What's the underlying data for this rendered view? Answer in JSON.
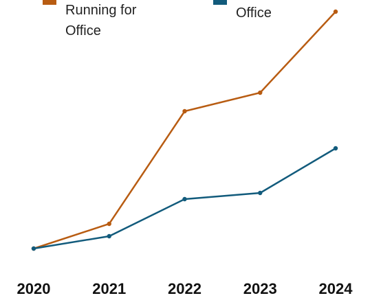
{
  "chart_data": {
    "type": "line",
    "categories": [
      "2020",
      "2021",
      "2022",
      "2023",
      "2024"
    ],
    "series": [
      {
        "name": "Running for Office",
        "color": "#b85c12",
        "values": [
          0,
          36,
          200,
          227,
          345
        ]
      },
      {
        "name": "Office",
        "color": "#125b7c",
        "values": [
          0,
          18,
          72,
          81,
          146
        ]
      }
    ]
  }
}
